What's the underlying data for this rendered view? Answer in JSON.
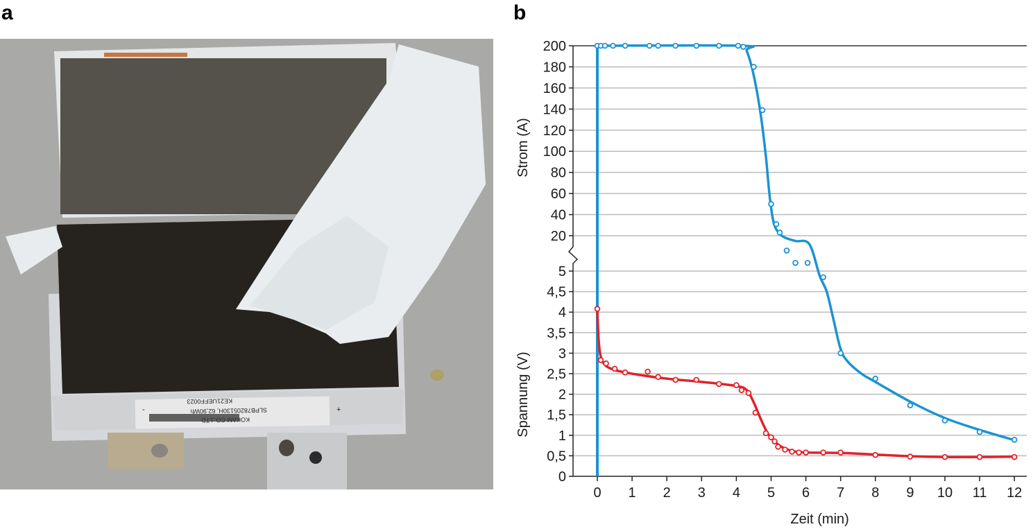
{
  "panels": {
    "photo_letter": "a",
    "chart_letter": "b"
  },
  "photo": {
    "label_line1": "KE21UEFF0023",
    "label_line2": "SLPB78205130H, 62,90Wh",
    "label_line3": "KOKAM CO.,LTD",
    "label_plus": "+",
    "label_minus": "-"
  },
  "chart_data": {
    "type": "line",
    "title": "",
    "xlabel": "Zeit (min)",
    "xlim": [
      -0.5,
      12.5
    ],
    "xticks": [
      "0",
      "1",
      "2",
      "3",
      "4",
      "5",
      "6",
      "7",
      "8",
      "9",
      "10",
      "11",
      "12"
    ],
    "upper_axis": {
      "label": "Strom (A)",
      "ylim": [
        20,
        200
      ],
      "ticks": [
        "20",
        "40",
        "60",
        "80",
        "100",
        "120",
        "140",
        "160",
        "180",
        "200"
      ]
    },
    "lower_axis": {
      "label": "Spannung (V)",
      "ylim": [
        0,
        5
      ],
      "ticks": [
        "0",
        "0,5",
        "1",
        "1,5",
        "2",
        "2,5",
        "3",
        "3,5",
        "4",
        "4,5",
        "5"
      ]
    },
    "grid": true,
    "axis_break": true,
    "colors": {
      "current": "#1b93d2",
      "voltage": "#e1222a",
      "grid": "#bcbcbc"
    },
    "series": [
      {
        "key": "current",
        "axis": "upper",
        "points_x": [
          0,
          0.1,
          0.22,
          0.45,
          0.8,
          1.5,
          1.75,
          2.25,
          2.85,
          3.5,
          4.05,
          4.2,
          4.5,
          4.75,
          5.0,
          5.15,
          5.25,
          5.45,
          5.7,
          6.05,
          6.5,
          7.0,
          8.0,
          9.0,
          10.0,
          11.0,
          12.0
        ],
        "points_y": [
          200,
          200,
          200,
          200,
          200,
          200,
          200,
          200,
          200,
          200,
          200,
          199,
          180,
          139,
          50,
          31,
          23,
          "5.5",
          "5.2",
          "5.2",
          "4.85",
          "3.0",
          "2.38",
          "1.73",
          "1.36",
          "1.08",
          "0.89"
        ],
        "curve_x": [
          0,
          4.15,
          4.3,
          4.5,
          4.7,
          4.85,
          4.95,
          5.05,
          5.15,
          5.35,
          5.7,
          6.1,
          6.4,
          6.6,
          6.8,
          7.0,
          7.2,
          7.6,
          8.0,
          9.0,
          10.0,
          11.0,
          12.0
        ],
        "curve_y": [
          200,
          200,
          195,
          172,
          135,
          95,
          60,
          36,
          26,
          19,
          15,
          12,
          "4.88",
          "4.5",
          "3.8",
          "3.1",
          "2.8",
          "2.5",
          "2.3",
          "1.82",
          "1.42",
          "1.13",
          "0.88"
        ]
      },
      {
        "key": "voltage",
        "axis": "lower",
        "points_x": [
          0,
          0.1,
          0.25,
          0.5,
          0.8,
          1.45,
          1.75,
          2.25,
          2.85,
          3.5,
          4.0,
          4.15,
          4.35,
          4.55,
          4.85,
          5.0,
          5.1,
          5.2,
          5.4,
          5.6,
          5.8,
          6.0,
          6.5,
          7.0,
          8.0,
          9.0,
          10.0,
          11.0,
          12.0
        ],
        "points_y": [
          4.08,
          2.83,
          2.75,
          2.62,
          2.53,
          2.55,
          2.42,
          2.35,
          2.35,
          2.25,
          2.22,
          2.1,
          2.03,
          1.55,
          1.05,
          0.95,
          0.85,
          0.72,
          0.65,
          0.6,
          0.58,
          0.58,
          0.58,
          0.58,
          0.52,
          0.48,
          0.47,
          0.47,
          0.47
        ],
        "curve_x": [
          0,
          0.05,
          0.15,
          0.4,
          1.0,
          2.0,
          3.0,
          4.0,
          4.3,
          4.5,
          4.7,
          4.9,
          5.1,
          5.3,
          5.6,
          6.0,
          7.0,
          8.0,
          9.0,
          10.0,
          11.0,
          12.0
        ],
        "curve_y": [
          4.05,
          3.2,
          2.8,
          2.62,
          2.5,
          2.38,
          2.3,
          2.2,
          2.1,
          1.8,
          1.4,
          1.05,
          0.85,
          0.72,
          0.62,
          0.58,
          0.57,
          0.53,
          0.49,
          0.47,
          0.47,
          0.48
        ]
      }
    ],
    "vertical_line_x": 0
  }
}
